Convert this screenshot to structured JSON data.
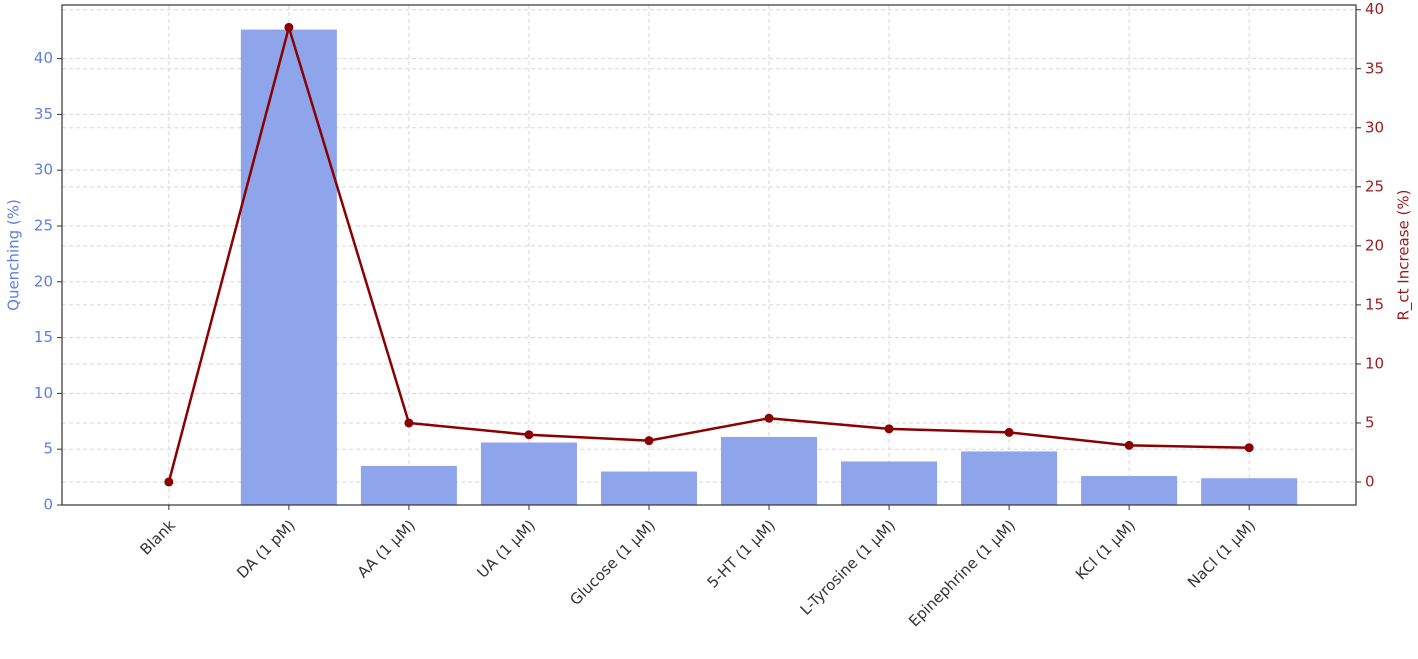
{
  "chart_data": {
    "type": "bar",
    "categories": [
      "Blank",
      "DA (1 pM)",
      "AA (1 µM)",
      "UA (1 µM)",
      "Glucose (1 µM)",
      "5-HT (1 µM)",
      "L-Tyrosine (1 µM)",
      "Epinephrine (1 µM)",
      "KCl (1 µM)",
      "NaCl (1 µM)"
    ],
    "series": [
      {
        "type": "bar",
        "color": "#8ea5ec",
        "values": [
          0,
          42.6,
          3.5,
          5.6,
          3.0,
          6.1,
          3.9,
          4.8,
          2.6,
          2.4
        ]
      },
      {
        "type": "line",
        "axis": "y2",
        "color": "#8b0000",
        "values": [
          0,
          38.5,
          5.0,
          4.0,
          3.5,
          5.4,
          4.5,
          4.2,
          3.1,
          2.9
        ]
      }
    ],
    "ylabel": "Quenching (%)",
    "y2label": "R_ct Increase (%)",
    "ylabel_color": "#5b7fe0",
    "y2label_color": "#9b1c1c",
    "ylim": [
      0,
      44.8
    ],
    "yticks": [
      0,
      5,
      10,
      15,
      20,
      25,
      30,
      35,
      40
    ],
    "y2lim": [
      -1.95,
      40.4
    ],
    "y2ticks": [
      0,
      5,
      10,
      15,
      20,
      25,
      30,
      35,
      40
    ],
    "grid": true
  }
}
